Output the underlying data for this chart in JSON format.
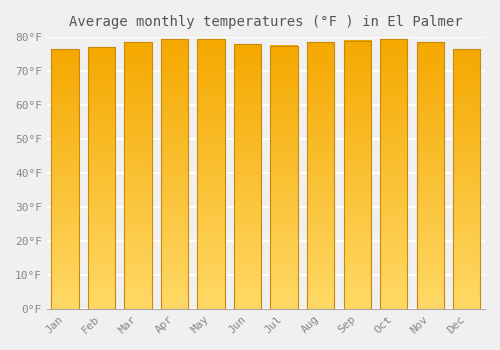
{
  "title": "Average monthly temperatures (°F ) in El Palmer",
  "months": [
    "Jan",
    "Feb",
    "Mar",
    "Apr",
    "May",
    "Jun",
    "Jul",
    "Aug",
    "Sep",
    "Oct",
    "Nov",
    "Dec"
  ],
  "values": [
    76.5,
    77.0,
    78.5,
    79.5,
    79.5,
    78.0,
    77.5,
    78.5,
    79.0,
    79.5,
    78.5,
    76.5
  ],
  "bar_color_top": "#F5A800",
  "bar_color_bottom": "#FFD966",
  "bar_edge_color": "#C8880A",
  "ylim": [
    0,
    80
  ],
  "yticks": [
    0,
    10,
    20,
    30,
    40,
    50,
    60,
    70,
    80
  ],
  "ytick_labels": [
    "0°F",
    "10°F",
    "20°F",
    "30°F",
    "40°F",
    "50°F",
    "60°F",
    "70°F",
    "80°F"
  ],
  "background_color": "#f0f0f0",
  "grid_color": "#ffffff",
  "title_fontsize": 10,
  "tick_fontsize": 8,
  "font_family": "monospace"
}
